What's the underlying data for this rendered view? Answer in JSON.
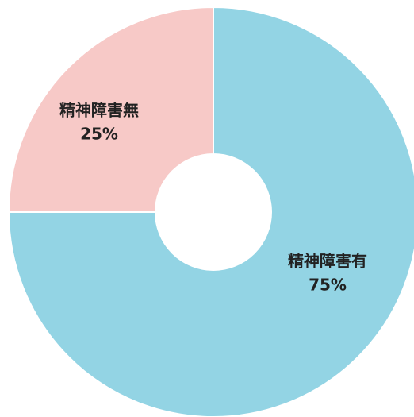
{
  "chart_data": {
    "type": "donut",
    "categories": [
      "精神障害有",
      "精神障害無"
    ],
    "values": [
      75,
      25
    ],
    "value_labels": [
      "75%",
      "25%"
    ],
    "colors": [
      "#93d4e4",
      "#f7c9c7"
    ]
  }
}
